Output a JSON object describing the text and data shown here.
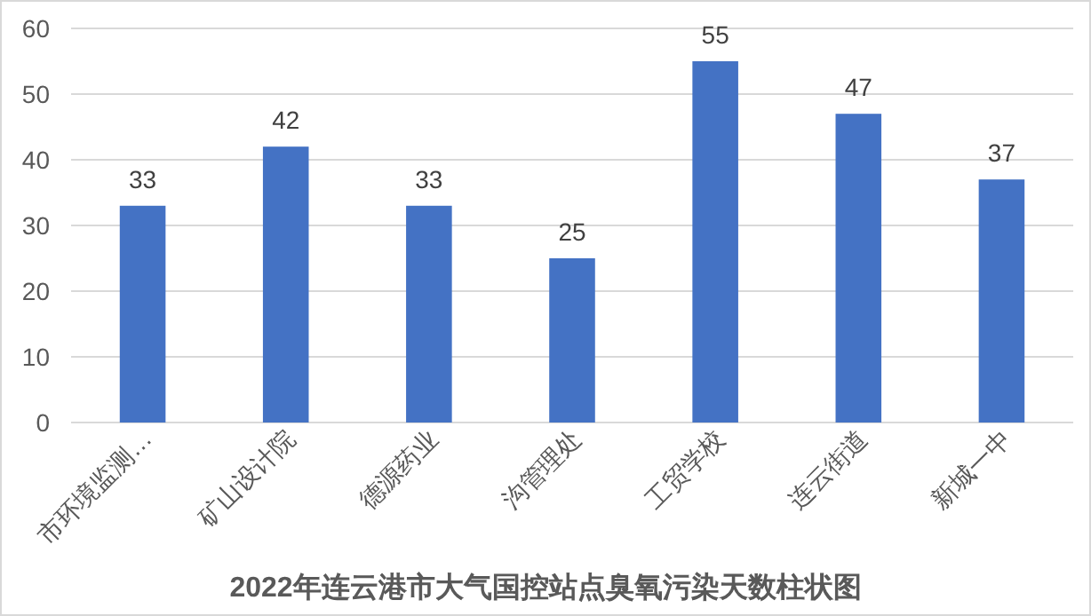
{
  "chart_data": {
    "type": "bar",
    "title": "2022年连云港市大气国控站点臭氧污染天数柱状图",
    "categories": [
      "市环境监测…",
      "矿山设计院",
      "德源药业",
      "沟管理处",
      "工贸学校",
      "连云街道",
      "新城一中"
    ],
    "values": [
      33,
      42,
      33,
      25,
      55,
      47,
      37
    ],
    "color": "#4472c4",
    "ylim": [
      0,
      60
    ],
    "yticks": [
      0,
      10,
      20,
      30,
      40,
      50,
      60
    ],
    "grid": "y",
    "data_labels": true
  }
}
